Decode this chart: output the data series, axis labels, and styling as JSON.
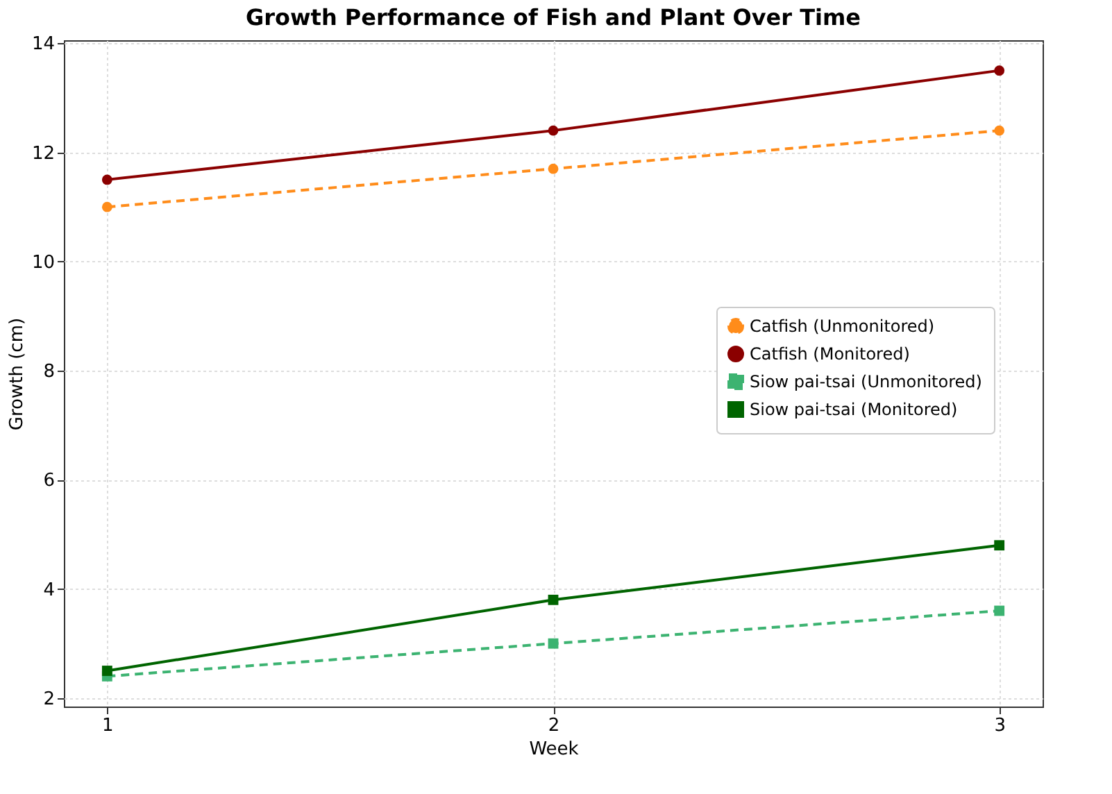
{
  "chart_data": {
    "type": "line",
    "title": "Growth Performance of Fish and Plant Over Time",
    "xlabel": "Week",
    "ylabel": "Growth (cm)",
    "x": [
      1,
      2,
      3
    ],
    "xlim": [
      0.903,
      3.097
    ],
    "xticks": [
      1,
      2,
      3
    ],
    "ylim": [
      1.845,
      14.055
    ],
    "yticks": [
      2,
      4,
      6,
      8,
      10,
      12,
      14
    ],
    "grid": true,
    "legend": "right",
    "series": [
      {
        "name": "Catfish (Unmonitored)",
        "color": "#ff8c1a",
        "values": [
          11.0,
          11.7,
          12.4
        ],
        "marker": "circle",
        "line_style": "dashed"
      },
      {
        "name": "Catfish (Monitored)",
        "color": "#8b0000",
        "values": [
          11.5,
          12.4,
          13.5
        ],
        "marker": "circle",
        "line_style": "solid"
      },
      {
        "name": "Siow pai-tsai (Unmonitored)",
        "color": "#3cb371",
        "values": [
          2.4,
          3.0,
          3.6
        ],
        "marker": "square",
        "line_style": "dashed"
      },
      {
        "name": "Siow pai-tsai (Monitored)",
        "color": "#006400",
        "values": [
          2.5,
          3.8,
          4.8
        ],
        "marker": "square",
        "line_style": "solid"
      }
    ]
  }
}
